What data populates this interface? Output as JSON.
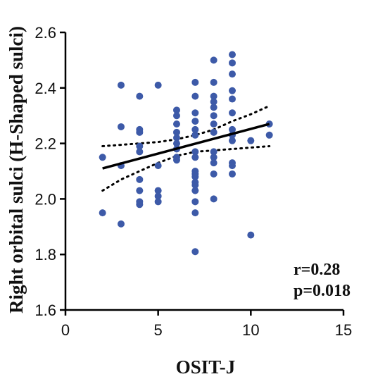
{
  "chart_data": {
    "type": "scatter",
    "xlabel": "OSIT-J",
    "ylabel": "Right orbital sulci (H-Shaped sulci)",
    "xlim": [
      0,
      15
    ],
    "ylim": [
      1.6,
      2.6
    ],
    "xticks": [
      "0",
      "5",
      "10",
      "15"
    ],
    "yticks": [
      "1.6",
      "1.8",
      "2.0",
      "2.2",
      "2.4",
      "2.6"
    ],
    "grid": false,
    "marker_color": "#3d5aa8",
    "line_color": "#000000",
    "points": [
      [
        2,
        2.15
      ],
      [
        2,
        1.95
      ],
      [
        3,
        2.41
      ],
      [
        3,
        2.26
      ],
      [
        3,
        2.12
      ],
      [
        3,
        1.91
      ],
      [
        4,
        2.37
      ],
      [
        4,
        2.25
      ],
      [
        4,
        2.24
      ],
      [
        4,
        2.19
      ],
      [
        4,
        2.17
      ],
      [
        4,
        2.07
      ],
      [
        4,
        2.03
      ],
      [
        4,
        1.99
      ],
      [
        4,
        1.98
      ],
      [
        5,
        2.41
      ],
      [
        5,
        2.12
      ],
      [
        5,
        2.03
      ],
      [
        5,
        2.01
      ],
      [
        5,
        1.99
      ],
      [
        6,
        2.32
      ],
      [
        6,
        2.3
      ],
      [
        6,
        2.27
      ],
      [
        6,
        2.24
      ],
      [
        6,
        2.22
      ],
      [
        6,
        2.2
      ],
      [
        6,
        2.18
      ],
      [
        6,
        2.15
      ],
      [
        6,
        2.14
      ],
      [
        7,
        2.42
      ],
      [
        7,
        2.37
      ],
      [
        7,
        2.31
      ],
      [
        7,
        2.28
      ],
      [
        7,
        2.25
      ],
      [
        7,
        2.23
      ],
      [
        7,
        2.17
      ],
      [
        7,
        2.15
      ],
      [
        7,
        2.1
      ],
      [
        7,
        2.09
      ],
      [
        7,
        2.08
      ],
      [
        7,
        2.06
      ],
      [
        7,
        2.05
      ],
      [
        7,
        2.03
      ],
      [
        7,
        1.99
      ],
      [
        7,
        1.95
      ],
      [
        7,
        1.81
      ],
      [
        8,
        2.5
      ],
      [
        8,
        2.42
      ],
      [
        8,
        2.37
      ],
      [
        8,
        2.35
      ],
      [
        8,
        2.33
      ],
      [
        8,
        2.3
      ],
      [
        8,
        2.27
      ],
      [
        8,
        2.24
      ],
      [
        8,
        2.17
      ],
      [
        8,
        2.15
      ],
      [
        8,
        2.13
      ],
      [
        8,
        2.09
      ],
      [
        8,
        2.0
      ],
      [
        9,
        2.52
      ],
      [
        9,
        2.49
      ],
      [
        9,
        2.45
      ],
      [
        9,
        2.39
      ],
      [
        9,
        2.36
      ],
      [
        9,
        2.31
      ],
      [
        9,
        2.25
      ],
      [
        9,
        2.23
      ],
      [
        9,
        2.21
      ],
      [
        9,
        2.13
      ],
      [
        9,
        2.12
      ],
      [
        9,
        2.09
      ],
      [
        10,
        2.21
      ],
      [
        10,
        1.87
      ],
      [
        11,
        2.27
      ],
      [
        11,
        2.23
      ]
    ],
    "regression": {
      "x": [
        2,
        11
      ],
      "y": [
        2.11,
        2.27
      ]
    },
    "ci_upper": [
      [
        2,
        2.19
      ],
      [
        3,
        2.195
      ],
      [
        4,
        2.2
      ],
      [
        5,
        2.205
      ],
      [
        6,
        2.215
      ],
      [
        7,
        2.23
      ],
      [
        8,
        2.25
      ],
      [
        9,
        2.28
      ],
      [
        10,
        2.305
      ],
      [
        11,
        2.335
      ]
    ],
    "ci_lower": [
      [
        2,
        2.03
      ],
      [
        3,
        2.07
      ],
      [
        4,
        2.1
      ],
      [
        5,
        2.13
      ],
      [
        6,
        2.155
      ],
      [
        7,
        2.17
      ],
      [
        8,
        2.175
      ],
      [
        9,
        2.18
      ],
      [
        10,
        2.185
      ],
      [
        11,
        2.19
      ]
    ],
    "annotations": [
      "r=0.28",
      "p=0.018"
    ]
  }
}
